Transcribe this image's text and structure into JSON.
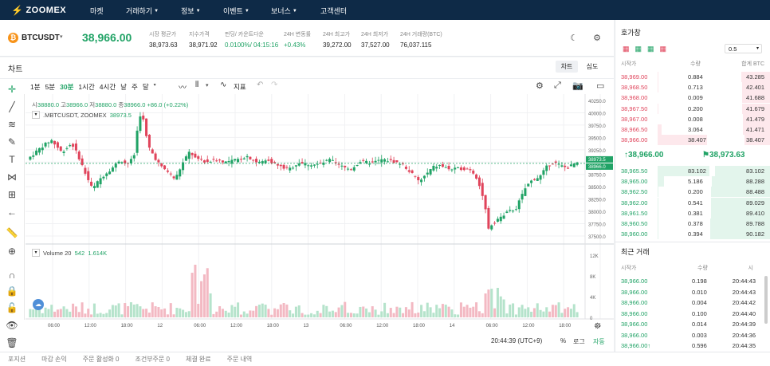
{
  "nav": {
    "logo": "ZOOMEX",
    "items": [
      {
        "label": "마켓",
        "dd": false
      },
      {
        "label": "거래하기",
        "dd": true
      },
      {
        "label": "정보",
        "dd": true
      },
      {
        "label": "이벤트",
        "dd": true
      },
      {
        "label": "보너스",
        "dd": true
      },
      {
        "label": "고객센터",
        "dd": false
      }
    ]
  },
  "ticker": {
    "symbol": "BTCUSDT",
    "price": "38,966.00",
    "stats": [
      {
        "label": "시장 평균가",
        "value": "38,973.63",
        "color": "#222"
      },
      {
        "label": "지수가격",
        "value": "38,971.92",
        "color": "#222"
      },
      {
        "label": "펀딩/ 카운트다운",
        "value": "0.0100%/ 04:15:16",
        "color": "#21a366"
      },
      {
        "label": "24H 변동률",
        "value": "+0.43%",
        "color": "#21a366"
      },
      {
        "label": "24H 최고가",
        "value": "39,272.00",
        "color": "#222"
      },
      {
        "label": "24H 최저가",
        "value": "37,527.00",
        "color": "#222"
      },
      {
        "label": "24H 거래량(BTC)",
        "value": "76,037.115",
        "color": "#222"
      }
    ]
  },
  "chart": {
    "title": "차트",
    "tab_chart": "차트",
    "tab_depth": "심도",
    "intervals": [
      "1분",
      "5분",
      "30분",
      "1시간",
      "4시간",
      "날",
      "주",
      "달"
    ],
    "active_interval": "30분",
    "indicator_label": "지표",
    "ohlc": {
      "o_label": "시",
      "o": "38880.0",
      "h_label": "고",
      "h": "38966.0",
      "l_label": "저",
      "l": "38880.0",
      "c_label": "종",
      "c": "38966.0",
      "chg": "+86.0 (+0.22%)"
    },
    "legend": ".MBTCUSDT, ZOOMEX",
    "legend_val": "38973.5",
    "price_ticks": [
      "40250.0",
      "40000.0",
      "39750.0",
      "39500.0",
      "39250.0",
      "38750.0",
      "38500.0",
      "38250.0",
      "38000.0",
      "37750.0",
      "37500.0"
    ],
    "price_tag_top": "38973.5",
    "price_tag_bot": "38966.0",
    "volume_label": "Volume 20",
    "volume_v1": "542",
    "volume_v2": "1.614K",
    "vol_ticks": [
      "12K",
      "8K",
      "4K",
      "0"
    ],
    "time_ticks": [
      "06:00",
      "12:00",
      "18:00",
      "12",
      "06:00",
      "12:00",
      "18:00",
      "13",
      "06:00",
      "12:00",
      "18:00",
      "14",
      "06:00",
      "12:00",
      "18:00",
      "15"
    ],
    "clock": "20:44:39 (UTC+9)",
    "pct": "%",
    "log": "로그",
    "auto": "자동"
  },
  "chart_data": {
    "type": "candlestick",
    "ylim": [
      37500,
      40250
    ],
    "last_price": 38966.0,
    "mark_price": 38973.5,
    "volume_ylim": [
      0,
      12000
    ]
  },
  "orderbook": {
    "title": "호가창",
    "precision": "0.5",
    "headers": [
      "시작가",
      "수량",
      "합계 BTC"
    ],
    "asks": [
      [
        "38,969.00",
        "0.884",
        "43.285"
      ],
      [
        "38,968.50",
        "0.713",
        "42.401"
      ],
      [
        "38,968.00",
        "0.009",
        "41.688"
      ],
      [
        "38,967.50",
        "0.200",
        "41.679"
      ],
      [
        "38,967.00",
        "0.008",
        "41.479"
      ],
      [
        "38,966.50",
        "3.064",
        "41.471"
      ],
      [
        "38,966.00",
        "38.407",
        "38.407"
      ]
    ],
    "last": "38,966.00",
    "mark": "38,973.63",
    "bids": [
      [
        "38,965.50",
        "83.102",
        "83.102"
      ],
      [
        "38,965.00",
        "5.186",
        "88.288"
      ],
      [
        "38,962.50",
        "0.200",
        "88.488"
      ],
      [
        "38,962.00",
        "0.541",
        "89.029"
      ],
      [
        "38,961.50",
        "0.381",
        "89.410"
      ],
      [
        "38,960.50",
        "0.378",
        "89.788"
      ],
      [
        "38,960.00",
        "0.394",
        "90.182"
      ]
    ],
    "colors": {
      "ask": "#e0445b",
      "bid": "#21a366"
    }
  },
  "trades": {
    "title": "최근 거래",
    "headers": [
      "시작가",
      "수량",
      "시"
    ],
    "rows": [
      [
        "38,966.00",
        "0.198",
        "20:44:43"
      ],
      [
        "38,966.00",
        "0.010",
        "20:44:43"
      ],
      [
        "38,966.00",
        "0.004",
        "20:44:42"
      ],
      [
        "38,966.00",
        "0.100",
        "20:44:40"
      ],
      [
        "38,966.00",
        "0.014",
        "20:44:39"
      ],
      [
        "38,966.00",
        "0.003",
        "20:44:36"
      ],
      [
        "38,966.00↑",
        "0.596",
        "20:44:35"
      ]
    ]
  },
  "bottom": {
    "tabs": [
      "포지션",
      "마감 손익",
      "주문 활성화 0",
      "조건부주문 0",
      "체결 완료",
      "주문 내역"
    ]
  }
}
